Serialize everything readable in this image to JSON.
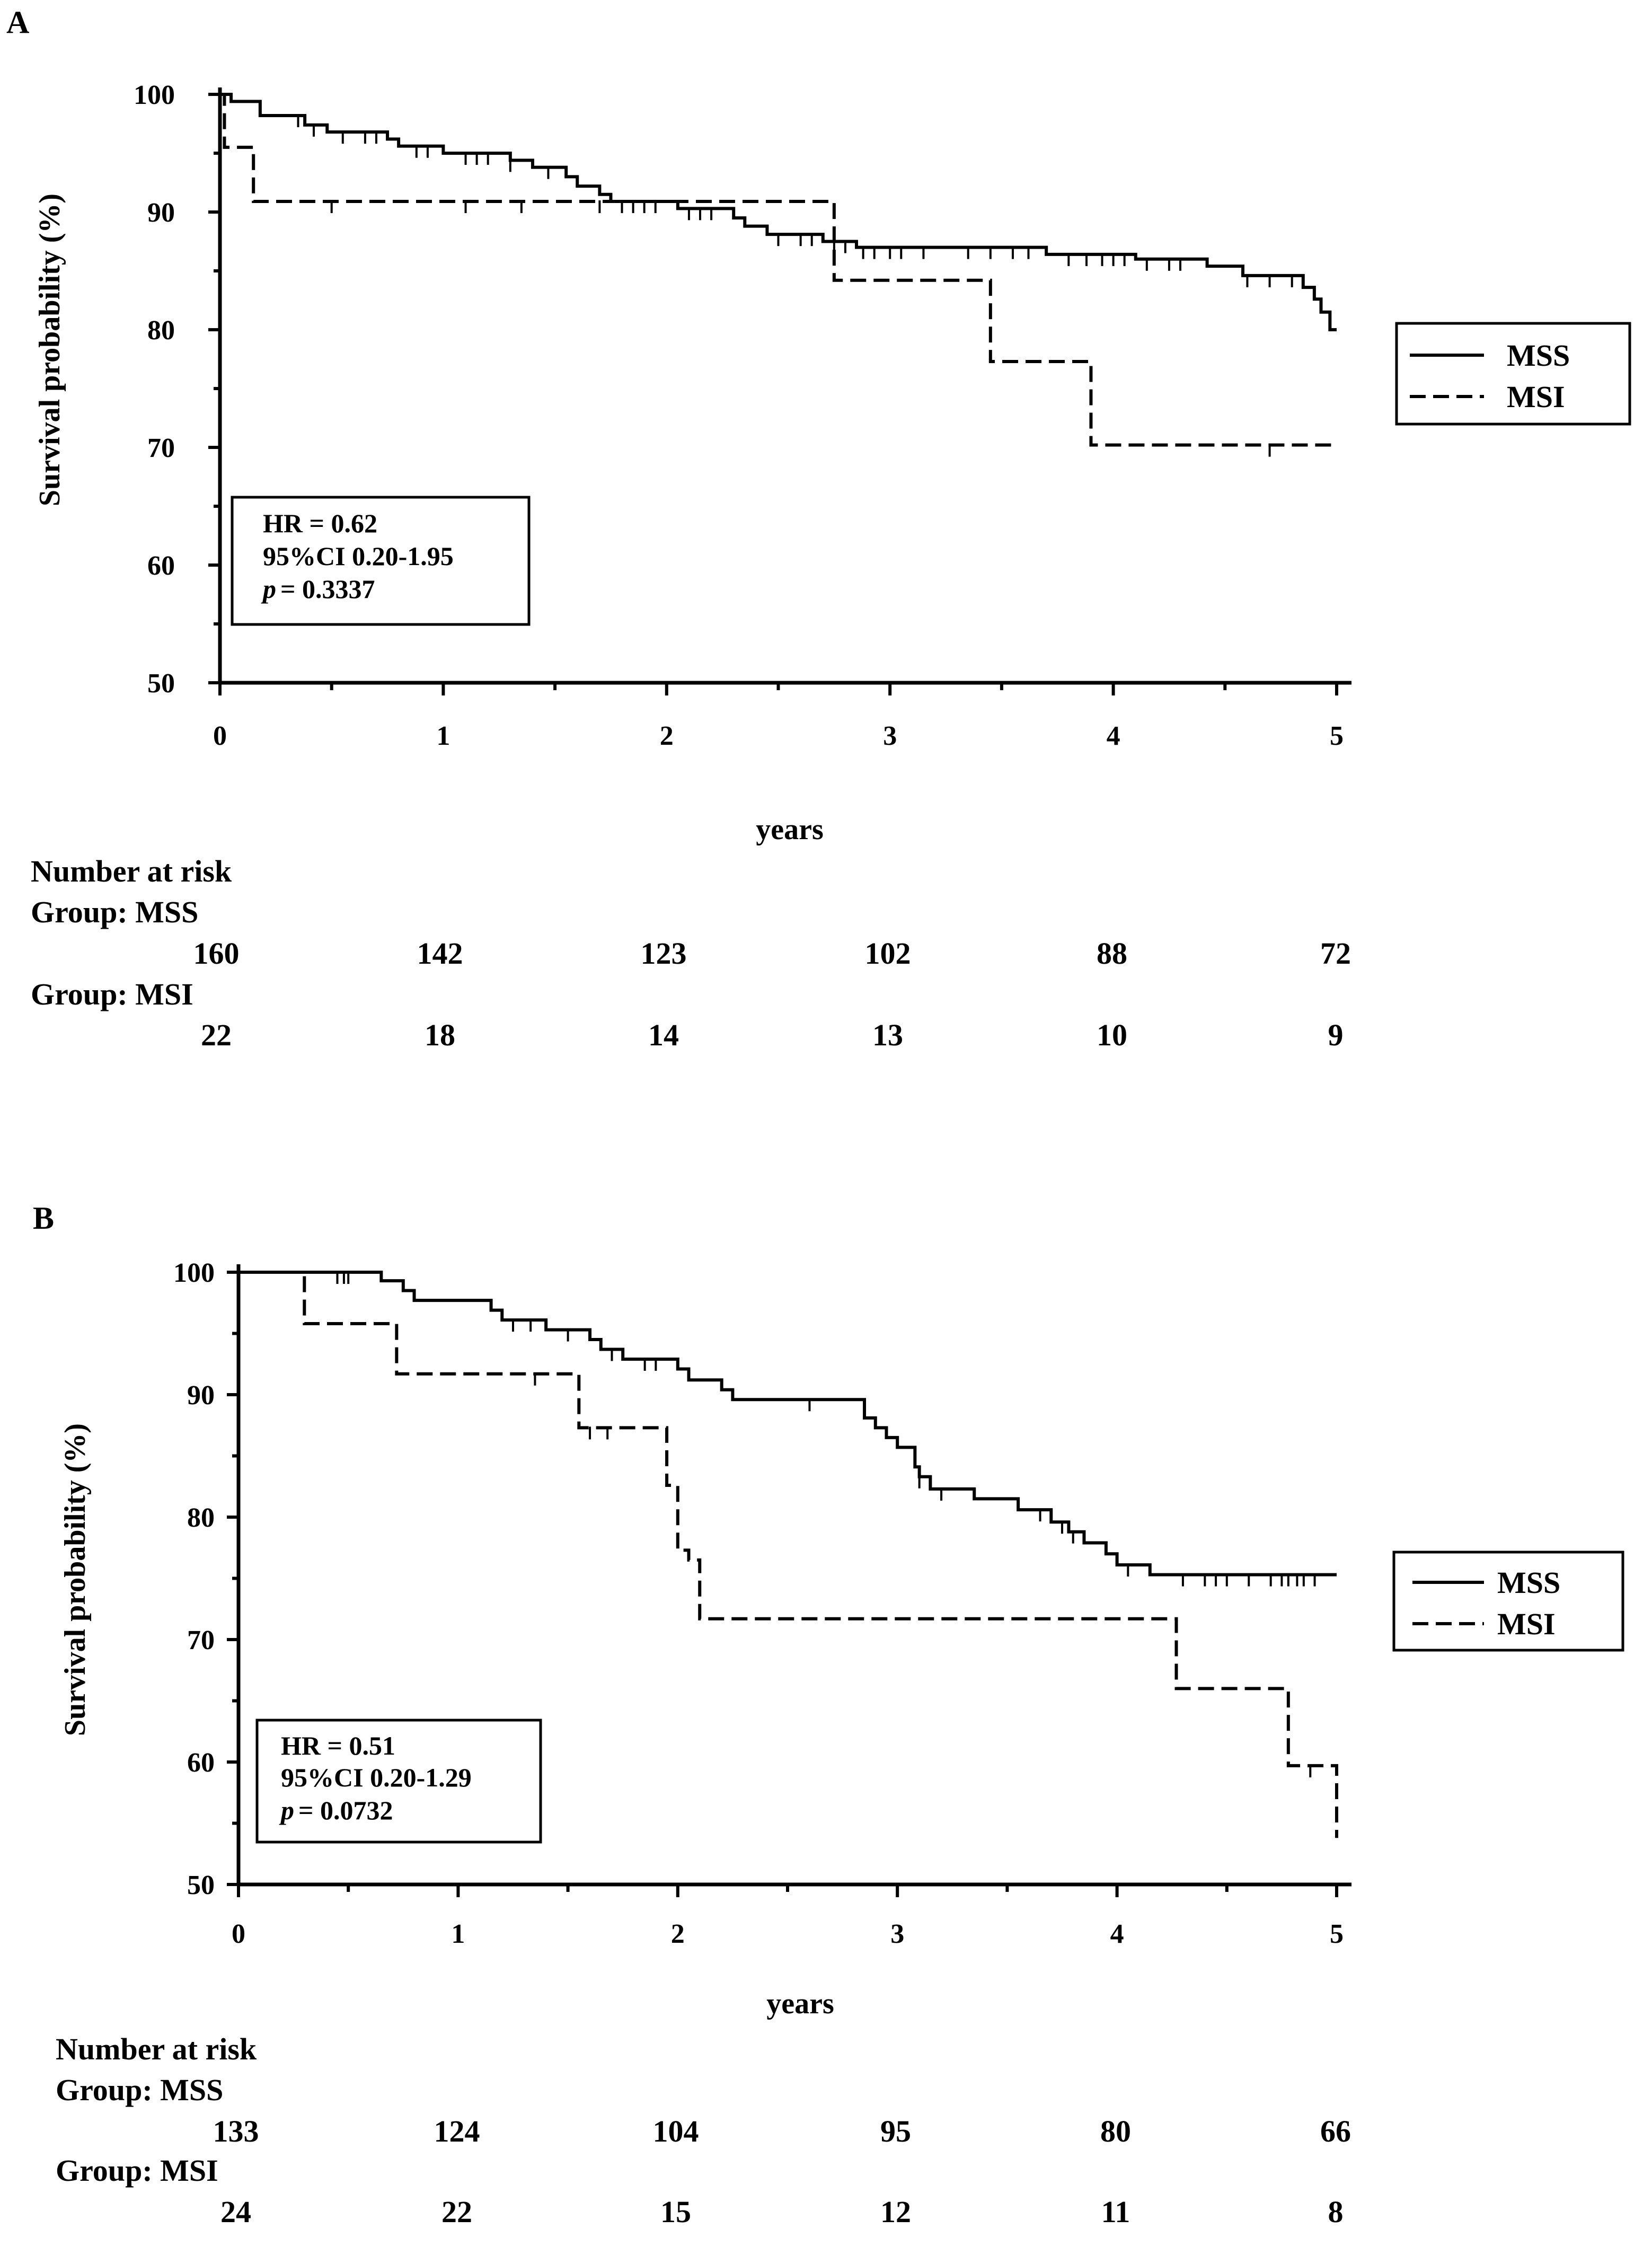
{
  "chart_data": [
    {
      "type": "line",
      "panel": "A",
      "xlabel": "years",
      "ylabel": "Survival probability (%)",
      "xlim": [
        0,
        5
      ],
      "ylim": [
        50,
        100
      ],
      "xticks": [
        "0",
        "1",
        "2",
        "3",
        "4",
        "5"
      ],
      "yticks": [
        "50",
        "60",
        "70",
        "80",
        "90",
        "100"
      ],
      "legend_position": "right",
      "series": [
        {
          "name": "MSS",
          "style": "solid",
          "x": [
            0,
            0.05,
            0.18,
            0.38,
            0.48,
            0.75,
            0.8,
            1.0,
            1.3,
            1.4,
            1.55,
            1.6,
            1.7,
            1.75,
            2.05,
            2.3,
            2.35,
            2.45,
            2.7,
            2.85,
            3.25,
            3.7,
            3.72,
            4.1,
            4.42,
            4.58,
            4.85,
            4.9,
            4.93,
            4.97,
            5.0
          ],
          "y": [
            100,
            99.4,
            98.2,
            97.4,
            96.8,
            96.2,
            95.6,
            95.0,
            94.4,
            93.8,
            93.0,
            92.2,
            91.5,
            90.9,
            90.3,
            89.5,
            88.8,
            88.1,
            87.5,
            87.0,
            87.0,
            86.4,
            86.4,
            86.0,
            85.4,
            84.6,
            83.6,
            82.6,
            81.5,
            80.0,
            80.0
          ],
          "censor_x": [
            0.35,
            0.42,
            0.55,
            0.65,
            0.7,
            0.88,
            0.93,
            1.1,
            1.15,
            1.2,
            1.3,
            1.47,
            1.8,
            1.85,
            1.9,
            1.95,
            2.1,
            2.15,
            2.2,
            2.5,
            2.6,
            2.65,
            2.75,
            2.8,
            2.88,
            2.93,
            3.0,
            3.05,
            3.15,
            3.35,
            3.45,
            3.55,
            3.62,
            3.8,
            3.88,
            3.95,
            4.0,
            4.05,
            4.15,
            4.25,
            4.3,
            4.6,
            4.7,
            4.8
          ]
        },
        {
          "name": "MSI",
          "style": "dashed",
          "x": [
            0,
            0.02,
            0.15,
            2.75,
            3.45,
            3.9,
            5.0
          ],
          "y": [
            100,
            95.5,
            90.9,
            84.2,
            77.3,
            70.2,
            70.2
          ],
          "censor_x": [
            0.5,
            1.1,
            1.35,
            1.7,
            4.7
          ]
        }
      ],
      "stats": {
        "hr": "HR = 0.62",
        "ci": "95%CI 0.20-1.95",
        "p_label": "p",
        "p_value": "= 0.3337"
      },
      "risk_table": {
        "title": "Number at risk",
        "groups": [
          {
            "label": "Group: MSS",
            "values": [
              "160",
              "142",
              "123",
              "102",
              "88",
              "72"
            ]
          },
          {
            "label": "Group: MSI",
            "values": [
              "22",
              "18",
              "14",
              "13",
              "10",
              "9"
            ]
          }
        ]
      }
    },
    {
      "type": "line",
      "panel": "B",
      "xlabel": "years",
      "ylabel": "Survival probability (%)",
      "xlim": [
        0,
        5
      ],
      "ylim": [
        50,
        100
      ],
      "xticks": [
        "0",
        "1",
        "2",
        "3",
        "4",
        "5"
      ],
      "yticks": [
        "50",
        "60",
        "70",
        "80",
        "90",
        "100"
      ],
      "legend_position": "right",
      "series": [
        {
          "name": "MSS",
          "style": "solid",
          "x": [
            0,
            0.65,
            0.75,
            0.8,
            1.15,
            1.2,
            1.4,
            1.6,
            1.65,
            1.75,
            2.0,
            2.05,
            2.2,
            2.25,
            2.85,
            2.9,
            2.95,
            3.0,
            3.08,
            3.1,
            3.15,
            3.35,
            3.55,
            3.7,
            3.78,
            3.85,
            3.95,
            4.0,
            4.15,
            5.0
          ],
          "y": [
            100,
            99.3,
            98.5,
            97.7,
            96.9,
            96.1,
            95.3,
            94.5,
            93.7,
            92.9,
            92.1,
            91.2,
            90.4,
            89.6,
            88.1,
            87.3,
            86.5,
            85.7,
            84.1,
            83.3,
            82.3,
            81.5,
            80.6,
            79.6,
            78.8,
            77.9,
            77.0,
            76.1,
            75.3,
            75.3
          ],
          "censor_x": [
            0.45,
            0.48,
            0.5,
            1.25,
            1.33,
            1.5,
            1.7,
            1.85,
            1.9,
            2.6,
            3.1,
            3.2,
            3.65,
            3.75,
            3.8,
            4.05,
            4.3,
            4.4,
            4.45,
            4.5,
            4.6,
            4.7,
            4.75,
            4.78,
            4.82,
            4.85,
            4.9
          ]
        },
        {
          "name": "MSI",
          "style": "dashed",
          "x": [
            0,
            0.3,
            0.72,
            1.55,
            1.95,
            2.0,
            2.05,
            2.1,
            3.6,
            4.27,
            4.78,
            5.0
          ],
          "y": [
            100,
            95.8,
            91.7,
            87.3,
            82.6,
            77.3,
            76.5,
            71.7,
            71.7,
            66.0,
            59.7,
            53.8
          ],
          "censor_x": [
            1.35,
            1.6,
            1.68,
            4.88
          ]
        }
      ],
      "stats": {
        "hr": "HR = 0.51",
        "ci": "95%CI 0.20-1.29",
        "p_label": "p",
        "p_value": "= 0.0732"
      },
      "risk_table": {
        "title": "Number at risk",
        "groups": [
          {
            "label": "Group: MSS",
            "values": [
              "133",
              "124",
              "104",
              "95",
              "80",
              "66"
            ]
          },
          {
            "label": "Group: MSI",
            "values": [
              "24",
              "22",
              "15",
              "12",
              "11",
              "8"
            ]
          }
        ]
      }
    }
  ]
}
